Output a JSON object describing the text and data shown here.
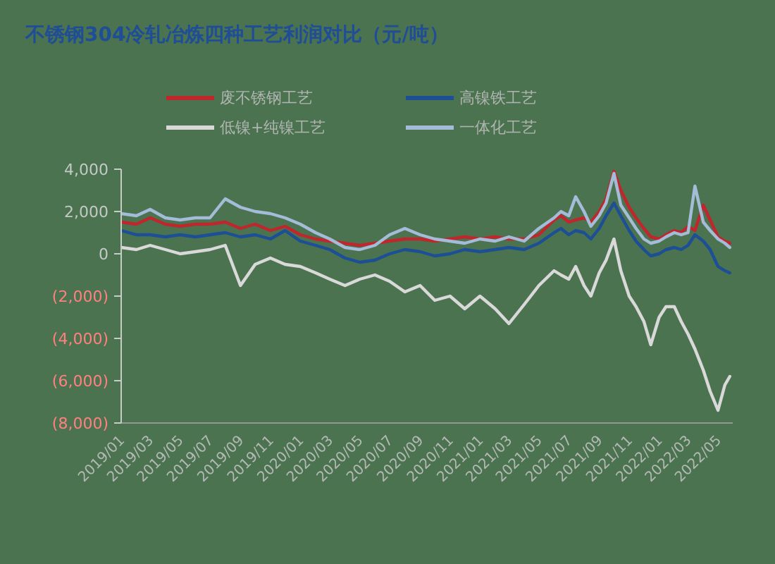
{
  "chart_data": {
    "type": "line",
    "title": "不锈钢304冷轧冶炼四种工艺利润对比（元/吨）",
    "x": [
      "2019-01-01",
      "2019-02-01",
      "2019-03-01",
      "2019-04-01",
      "2019-05-01",
      "2019-06-01",
      "2019-07-01",
      "2019-08-01",
      "2019-09-01",
      "2019-10-01",
      "2019-11-01",
      "2019-12-01",
      "2020-01-01",
      "2020-02-01",
      "2020-03-01",
      "2020-04-01",
      "2020-05-01",
      "2020-06-01",
      "2020-07-01",
      "2020-08-01",
      "2020-09-01",
      "2020-10-01",
      "2020-11-01",
      "2020-12-01",
      "2021-01-01",
      "2021-02-01",
      "2021-03-01",
      "2021-04-01",
      "2021-05-01",
      "2021-06-01",
      "2021-06-15",
      "2021-07-01",
      "2021-07-15",
      "2021-08-01",
      "2021-08-15",
      "2021-09-01",
      "2021-09-15",
      "2021-10-01",
      "2021-10-15",
      "2021-11-01",
      "2021-11-15",
      "2021-12-01",
      "2021-12-15",
      "2022-01-01",
      "2022-01-15",
      "2022-02-01",
      "2022-02-15",
      "2022-03-01",
      "2022-03-15",
      "2022-04-01",
      "2022-04-15",
      "2022-05-01",
      "2022-05-15",
      "2022-05-25"
    ],
    "series": [
      {
        "name": "废不锈钢工艺",
        "color": "#c0262b",
        "values": [
          1500,
          1400,
          1700,
          1400,
          1300,
          1400,
          1400,
          1500,
          1200,
          1400,
          1100,
          1300,
          900,
          700,
          600,
          500,
          400,
          500,
          600,
          700,
          700,
          600,
          700,
          800,
          700,
          800,
          700,
          700,
          900,
          1600,
          1800,
          1500,
          1600,
          1700,
          1500,
          2000,
          2600,
          3900,
          3000,
          2200,
          1700,
          1200,
          800,
          700,
          900,
          1100,
          1000,
          1300,
          1100,
          2300,
          1600,
          800,
          600,
          500
        ]
      },
      {
        "name": "高镍铁工艺",
        "color": "#1c4f96",
        "values": [
          1100,
          900,
          900,
          800,
          900,
          800,
          900,
          1000,
          800,
          900,
          700,
          1100,
          600,
          400,
          200,
          -200,
          -400,
          -300,
          0,
          200,
          100,
          -100,
          0,
          200,
          100,
          200,
          300,
          200,
          500,
          1000,
          1200,
          900,
          1100,
          1000,
          700,
          1200,
          1800,
          2400,
          1800,
          1100,
          600,
          200,
          -100,
          0,
          200,
          300,
          200,
          400,
          900,
          600,
          200,
          -600,
          -800,
          -900
        ]
      },
      {
        "name": "低镍+纯镍工艺",
        "color": "#d9d9d9",
        "values": [
          300,
          200,
          400,
          200,
          0,
          100,
          200,
          400,
          -1500,
          -500,
          -200,
          -500,
          -600,
          -900,
          -1200,
          -1500,
          -1200,
          -1000,
          -1300,
          -1800,
          -1500,
          -2200,
          -2000,
          -2600,
          -2000,
          -2600,
          -3300,
          -2400,
          -1500,
          -800,
          -1000,
          -1200,
          -600,
          -1500,
          -2000,
          -900,
          -300,
          700,
          -800,
          -2000,
          -2500,
          -3200,
          -4300,
          -3000,
          -2500,
          -2500,
          -3200,
          -3800,
          -4500,
          -5500,
          -6500,
          -7400,
          -6200,
          -5800
        ]
      },
      {
        "name": "一体化工艺",
        "color": "#a4bcd8",
        "values": [
          1900,
          1800,
          2100,
          1700,
          1600,
          1700,
          1700,
          2600,
          2200,
          2000,
          1900,
          1700,
          1400,
          1000,
          700,
          300,
          200,
          400,
          900,
          1200,
          900,
          700,
          600,
          500,
          700,
          600,
          800,
          600,
          1200,
          1700,
          2000,
          1800,
          2700,
          2000,
          1300,
          1800,
          2400,
          3800,
          2300,
          1700,
          1200,
          700,
          500,
          600,
          800,
          1000,
          900,
          1000,
          3200,
          1500,
          1100,
          700,
          500,
          300
        ]
      }
    ],
    "xlim": [
      "2019-01-01",
      "2022-05-31"
    ],
    "xticks": [
      {
        "value": "2019-01-01",
        "label": "2019/01"
      },
      {
        "value": "2019-03-01",
        "label": "2019/03"
      },
      {
        "value": "2019-05-01",
        "label": "2019/05"
      },
      {
        "value": "2019-07-01",
        "label": "2019/07"
      },
      {
        "value": "2019-09-01",
        "label": "2019/09"
      },
      {
        "value": "2019-11-01",
        "label": "2019/11"
      },
      {
        "value": "2020-01-01",
        "label": "2020/01"
      },
      {
        "value": "2020-03-01",
        "label": "2020/03"
      },
      {
        "value": "2020-05-01",
        "label": "2020/05"
      },
      {
        "value": "2020-07-01",
        "label": "2020/07"
      },
      {
        "value": "2020-09-01",
        "label": "2020/09"
      },
      {
        "value": "2020-11-01",
        "label": "2020/11"
      },
      {
        "value": "2021-01-01",
        "label": "2021/01"
      },
      {
        "value": "2021-03-01",
        "label": "2021/03"
      },
      {
        "value": "2021-05-01",
        "label": "2021/05"
      },
      {
        "value": "2021-07-01",
        "label": "2021/07"
      },
      {
        "value": "2021-09-01",
        "label": "2021/09"
      },
      {
        "value": "2021-11-01",
        "label": "2021/11"
      },
      {
        "value": "2022-01-01",
        "label": "2022/01"
      },
      {
        "value": "2022-03-01",
        "label": "2022/03"
      },
      {
        "value": "2022-05-01",
        "label": "2022/05"
      }
    ],
    "ylim": [
      -8000,
      4000
    ],
    "yticks": [
      {
        "value": 4000,
        "label": "4,000"
      },
      {
        "value": 2000,
        "label": "2,000"
      },
      0,
      {
        "value": -2000,
        "label": "(2,000)"
      },
      {
        "value": -4000,
        "label": "(4,000)"
      },
      {
        "value": -6000,
        "label": "(6,000)"
      },
      {
        "value": -8000,
        "label": "(8,000)"
      }
    ],
    "legend": "top",
    "line_style": "solid"
  }
}
